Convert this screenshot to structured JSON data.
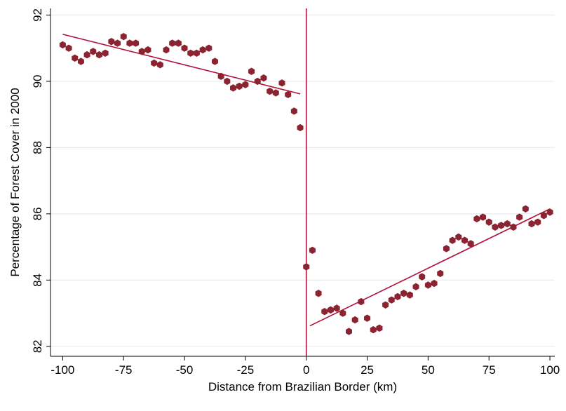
{
  "chart_data": {
    "type": "scatter",
    "title": "",
    "xlabel": "Distance from Brazilian Border (km)",
    "ylabel": "Percentage of Forest Cover in 2000",
    "xlim": [
      -105,
      102
    ],
    "ylim": [
      81.7,
      92.2
    ],
    "x_ticks": [
      -100,
      -75,
      -50,
      -25,
      0,
      25,
      50,
      75,
      100
    ],
    "x_tick_labels": [
      "-100",
      "-75",
      "-50",
      "-25",
      "0",
      "25",
      "50",
      "75",
      "100"
    ],
    "y_ticks": [
      82,
      84,
      86,
      88,
      90,
      92
    ],
    "y_tick_labels": [
      "82",
      "84",
      "86",
      "88",
      "90",
      "92"
    ],
    "grid": true,
    "legend": "none",
    "cutoff_line_x": 0,
    "colors": {
      "marker": "#8b2430",
      "line": "#b0103a",
      "grid": "#e4ecf0"
    },
    "series": [
      {
        "side": "left",
        "points": [
          [
            -100,
            91.1
          ],
          [
            -97.5,
            91.0
          ],
          [
            -95,
            90.7
          ],
          [
            -92.5,
            90.6
          ],
          [
            -90,
            90.8
          ],
          [
            -87.5,
            90.9
          ],
          [
            -85,
            90.8
          ],
          [
            -82.5,
            90.85
          ],
          [
            -80,
            91.2
          ],
          [
            -77.5,
            91.15
          ],
          [
            -75,
            91.35
          ],
          [
            -72.5,
            91.15
          ],
          [
            -70,
            91.15
          ],
          [
            -67.5,
            90.9
          ],
          [
            -65,
            90.95
          ],
          [
            -62.5,
            90.55
          ],
          [
            -60,
            90.5
          ],
          [
            -57.5,
            90.95
          ],
          [
            -55,
            91.15
          ],
          [
            -52.5,
            91.15
          ],
          [
            -50,
            91.0
          ],
          [
            -47.5,
            90.85
          ],
          [
            -45,
            90.85
          ],
          [
            -42.5,
            90.95
          ],
          [
            -40,
            91.0
          ],
          [
            -37.5,
            90.6
          ],
          [
            -35,
            90.15
          ],
          [
            -32.5,
            90.0
          ],
          [
            -30,
            89.8
          ],
          [
            -27.5,
            89.85
          ],
          [
            -25,
            89.9
          ],
          [
            -22.5,
            90.3
          ],
          [
            -20,
            90.0
          ],
          [
            -17.5,
            90.1
          ],
          [
            -15,
            89.7
          ],
          [
            -12.5,
            89.65
          ],
          [
            -10,
            89.95
          ],
          [
            -7.5,
            89.6
          ],
          [
            -5,
            89.1
          ],
          [
            -2.5,
            88.6
          ]
        ],
        "fit": [
          [
            -100,
            91.42
          ],
          [
            -2.5,
            89.62
          ]
        ]
      },
      {
        "side": "right",
        "points": [
          [
            0,
            84.4
          ],
          [
            2.5,
            84.9
          ],
          [
            5,
            83.6
          ],
          [
            7.5,
            83.05
          ],
          [
            10,
            83.1
          ],
          [
            12.5,
            83.15
          ],
          [
            15,
            83.0
          ],
          [
            17.5,
            82.45
          ],
          [
            20,
            82.8
          ],
          [
            22.5,
            83.35
          ],
          [
            25,
            82.85
          ],
          [
            27.5,
            82.5
          ],
          [
            30,
            82.55
          ],
          [
            32.5,
            83.25
          ],
          [
            35,
            83.4
          ],
          [
            37.5,
            83.5
          ],
          [
            40,
            83.6
          ],
          [
            42.5,
            83.55
          ],
          [
            45,
            83.8
          ],
          [
            47.5,
            84.1
          ],
          [
            50,
            83.85
          ],
          [
            52.5,
            83.9
          ],
          [
            55,
            84.2
          ],
          [
            57.5,
            84.95
          ],
          [
            60,
            85.2
          ],
          [
            62.5,
            85.3
          ],
          [
            65,
            85.2
          ],
          [
            67.5,
            85.1
          ],
          [
            70,
            85.85
          ],
          [
            72.5,
            85.9
          ],
          [
            75,
            85.75
          ],
          [
            77.5,
            85.6
          ],
          [
            80,
            85.65
          ],
          [
            82.5,
            85.7
          ],
          [
            85,
            85.6
          ],
          [
            87.5,
            85.9
          ],
          [
            90,
            86.15
          ],
          [
            92.5,
            85.7
          ],
          [
            95,
            85.75
          ],
          [
            97.5,
            85.95
          ],
          [
            100,
            86.05
          ]
        ],
        "fit": [
          [
            1.5,
            82.62
          ],
          [
            100,
            86.15
          ]
        ]
      }
    ]
  }
}
